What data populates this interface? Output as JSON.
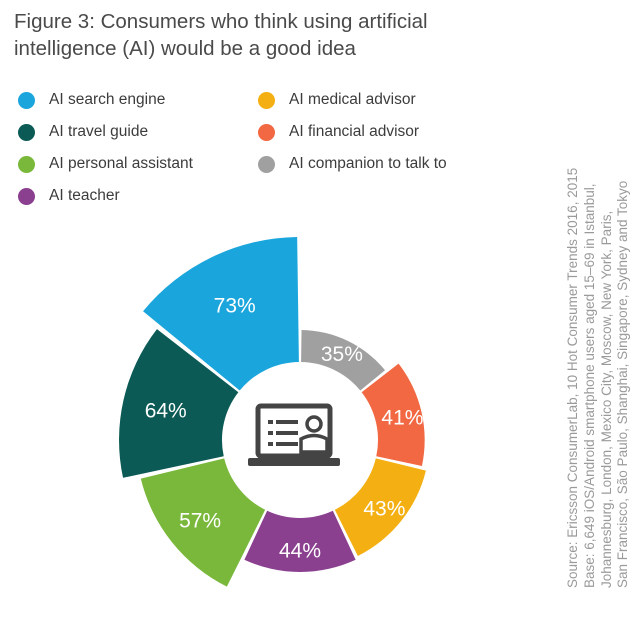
{
  "title_line1": "Figure 3: Consumers who think using artificial",
  "title_line2": "intelligence (AI) would be a good idea",
  "chart_data": {
    "type": "pie",
    "subtype": "radial bar (nightingale) chart",
    "title": "Figure 3: Consumers who think using artificial intelligence (AI) would be a good idea",
    "unit": "%",
    "legend_position": "top",
    "series": [
      {
        "name": "AI search engine",
        "value": 73,
        "label": "73%",
        "color": "#1aa6dc"
      },
      {
        "name": "AI travel guide",
        "value": 64,
        "label": "64%",
        "color": "#0b5a55"
      },
      {
        "name": "AI personal assistant",
        "value": 57,
        "label": "57%",
        "color": "#7ab83b"
      },
      {
        "name": "AI teacher",
        "value": 44,
        "label": "44%",
        "color": "#8a3f8f"
      },
      {
        "name": "AI medical advisor",
        "value": 43,
        "label": "43%",
        "color": "#f4b013"
      },
      {
        "name": "AI financial advisor",
        "value": 41,
        "label": "41%",
        "color": "#f26842"
      },
      {
        "name": "AI companion to talk to",
        "value": 35,
        "label": "35%",
        "color": "#a0a0a0"
      }
    ]
  },
  "center_icon": "laptop-user-icon",
  "source_lines": [
    "Source: Ericsson ConsumerLab, 10 Hot Consumer Trends 2016, 2015",
    "Base: 6,649 iOS/Android smartphone users aged 15–69 in Istanbul,",
    "Johannesburg, London, Mexico City, Moscow, New York, Paris,",
    "San Francisco, São Paulo, Shanghai, Singapore, Sydney and Tokyo"
  ]
}
